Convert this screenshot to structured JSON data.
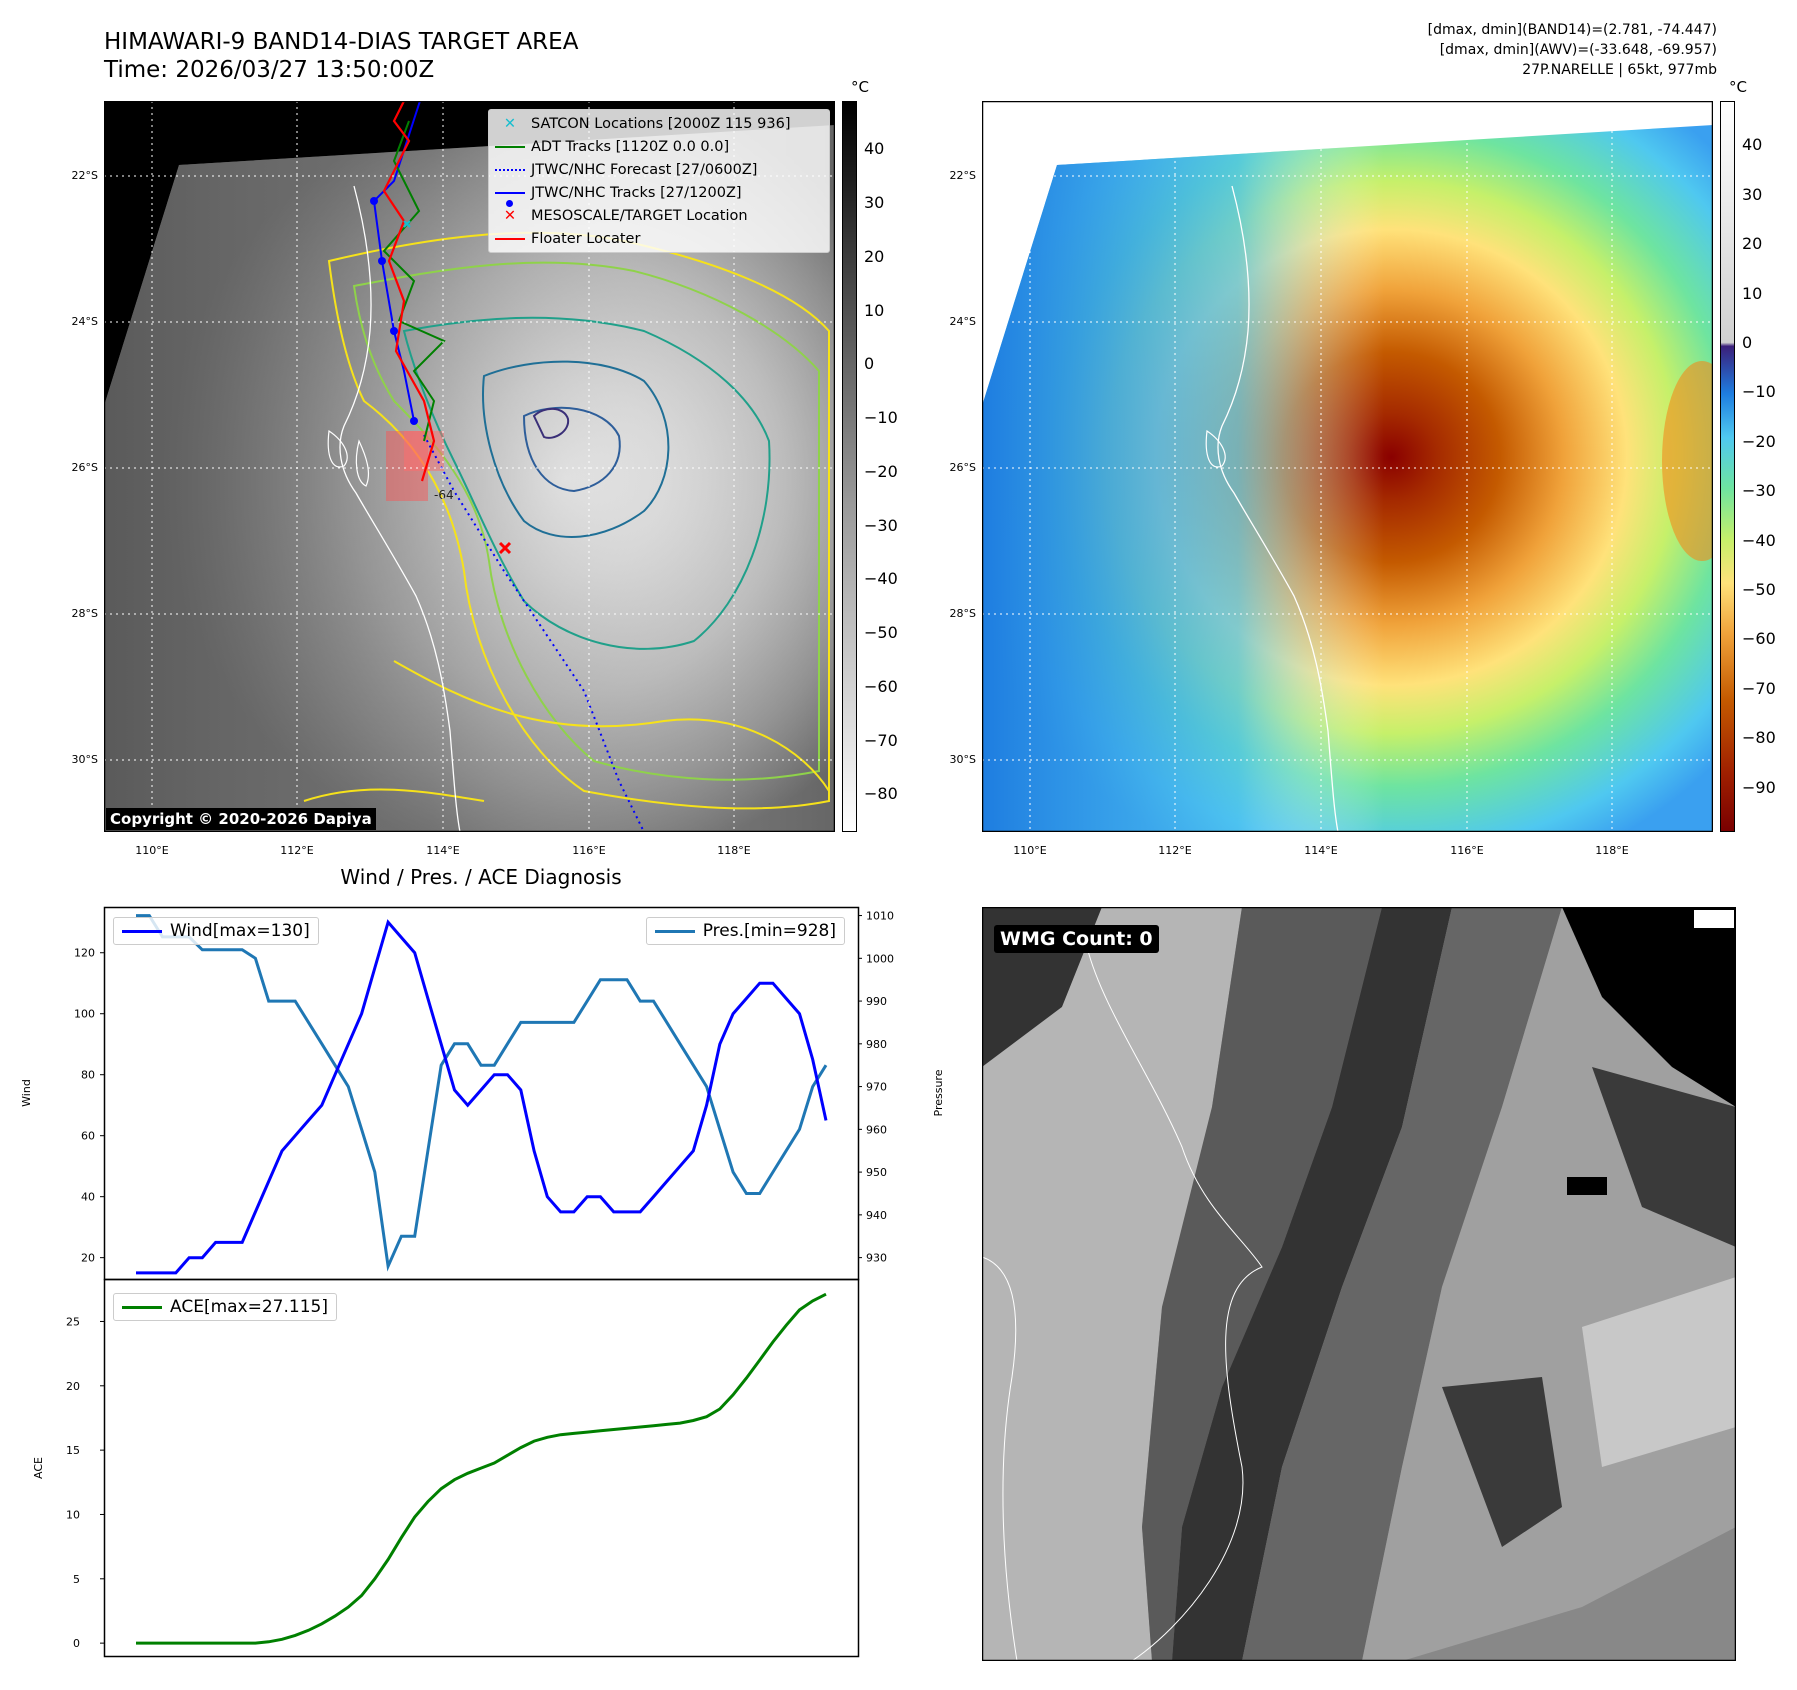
{
  "header": {
    "title_line1": "HIMAWARI-9 BAND14-DIAS TARGET AREA",
    "title_line2": "Time: 2026/03/27 13:50:00Z",
    "info_line1": "[dmax, dmin](BAND14)=(2.781, -74.447)",
    "info_line2": "[dmax, dmin](AWV)=(-33.648, -69.957)",
    "info_line3": "27P.NARELLE | 65kt, 977mb"
  },
  "map_axes": {
    "lon_ticks": [
      "110°E",
      "112°E",
      "114°E",
      "116°E",
      "118°E"
    ],
    "lat_ticks": [
      "22°S",
      "24°S",
      "26°S",
      "28°S",
      "30°S"
    ]
  },
  "ir_panel": {
    "legend": [
      {
        "label": "SATCON Locations [2000Z 115 936]",
        "color": "#17becf",
        "symbol": "x"
      },
      {
        "label": "ADT Tracks [1120Z 0.0 0.0]",
        "color": "#008000",
        "symbol": "line"
      },
      {
        "label": "JTWC/NHC Forecast [27/0600Z]",
        "color": "#0000ff",
        "symbol": "dotted"
      },
      {
        "label": "JTWC/NHC Tracks [27/1200Z]",
        "color": "#0000ff",
        "symbol": "line-dot"
      },
      {
        "label": "MESOSCALE/TARGET Location",
        "color": "#ff0000",
        "symbol": "x"
      },
      {
        "label": "Floater Locater",
        "color": "#ff0000",
        "symbol": "line"
      }
    ],
    "copyright": "Copyright © 2020-2026 Dapiya",
    "colorbar_unit": "°C",
    "colorbar_ticks": [
      "40",
      "30",
      "20",
      "10",
      "0",
      "−10",
      "−20",
      "−30",
      "−40",
      "−50",
      "−60",
      "−70",
      "−80"
    ],
    "contour_label": "-64"
  },
  "enh_panel": {
    "colorbar_unit": "°C",
    "colorbar_ticks": [
      "40",
      "30",
      "20",
      "10",
      "0",
      "−10",
      "−20",
      "−30",
      "−40",
      "−50",
      "−60",
      "−70",
      "−80",
      "−90"
    ]
  },
  "wmg_panel": {
    "badge": "WMG Count: 0"
  },
  "chart_data": [
    {
      "type": "line",
      "title": "Wind / Pres. / ACE Diagnosis",
      "ylabel": "Wind",
      "ylabel_right": "Pressure",
      "ylim": [
        13,
        135
      ],
      "ylim_right": [
        925,
        1012
      ],
      "yticks": [
        20,
        40,
        60,
        80,
        100,
        120
      ],
      "yticks_right": [
        930,
        940,
        950,
        960,
        970,
        980,
        990,
        1000,
        1010
      ],
      "series": [
        {
          "name": "Wind[max=130]",
          "color": "#0000ff",
          "axis": "left",
          "values": [
            15,
            15,
            15,
            15,
            20,
            20,
            25,
            25,
            25,
            35,
            45,
            55,
            60,
            65,
            70,
            80,
            90,
            100,
            115,
            130,
            125,
            120,
            105,
            90,
            75,
            70,
            75,
            80,
            80,
            75,
            55,
            40,
            35,
            35,
            40,
            40,
            35,
            35,
            35,
            40,
            45,
            50,
            55,
            70,
            90,
            100,
            105,
            110,
            110,
            105,
            100,
            85,
            65
          ]
        },
        {
          "name": "Pres.[min=928]",
          "color": "#1f77b4",
          "axis": "right",
          "values": [
            1010,
            1010,
            1005,
            1005,
            1005,
            1002,
            1002,
            1002,
            1002,
            1000,
            990,
            990,
            990,
            985,
            980,
            975,
            970,
            960,
            950,
            928,
            935,
            935,
            955,
            975,
            980,
            980,
            975,
            975,
            980,
            985,
            985,
            985,
            985,
            985,
            990,
            995,
            995,
            995,
            990,
            990,
            985,
            980,
            975,
            970,
            960,
            950,
            945,
            945,
            950,
            955,
            960,
            970,
            975
          ]
        }
      ]
    },
    {
      "type": "line",
      "ylabel": "ACE",
      "ylim": [
        -1,
        28.3
      ],
      "yticks": [
        0,
        5,
        10,
        15,
        20,
        25
      ],
      "series": [
        {
          "name": "ACE[max=27.115]",
          "color": "#008000",
          "values": [
            0,
            0,
            0,
            0,
            0,
            0,
            0,
            0,
            0,
            0,
            0.1,
            0.3,
            0.6,
            1.0,
            1.5,
            2.1,
            2.8,
            3.7,
            5.0,
            6.5,
            8.2,
            9.8,
            11.0,
            12.0,
            12.7,
            13.2,
            13.6,
            14.0,
            14.6,
            15.2,
            15.7,
            16.0,
            16.2,
            16.3,
            16.4,
            16.5,
            16.6,
            16.7,
            16.8,
            16.9,
            17.0,
            17.1,
            17.3,
            17.6,
            18.2,
            19.3,
            20.6,
            22.0,
            23.4,
            24.7,
            25.9,
            26.6,
            27.115
          ]
        }
      ]
    }
  ]
}
